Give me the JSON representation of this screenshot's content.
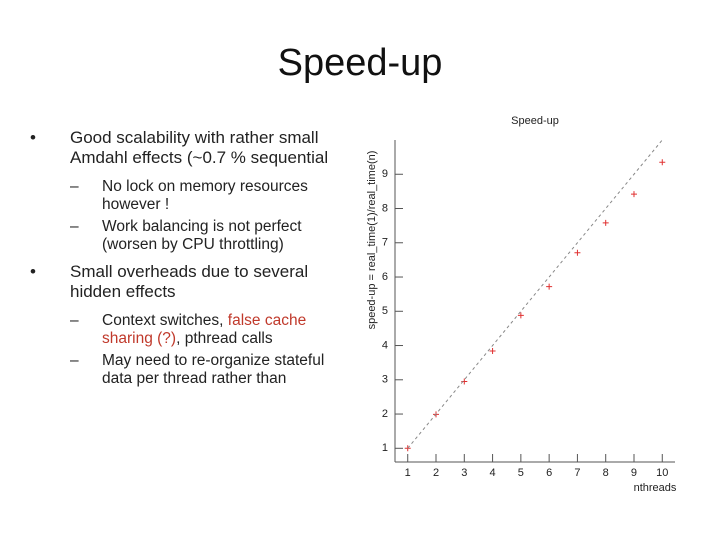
{
  "slide": {
    "title": "Speed-up",
    "bullets": [
      {
        "parts": [
          "Good scalability with rather small Amdahl effects (~0.7 % sequential"
        ],
        "sub": [
          {
            "parts": [
              "No lock on memory resources however !"
            ]
          },
          {
            "parts": [
              "Work balancing is not perfect (worsen by CPU throttling)"
            ]
          }
        ]
      },
      {
        "parts": [
          "Small overheads due to several hidden effects"
        ],
        "sub": [
          {
            "parts": [
              "Context switches, ",
              "false cache sharing (?)",
              ", pthread calls"
            ],
            "highlight": 1,
            "highlight_color": "#c0392b"
          },
          {
            "parts": [
              "May need to re-organize stateful data per thread rather than"
            ]
          }
        ]
      }
    ]
  },
  "chart_data": {
    "type": "scatter",
    "title": "Speed-up",
    "xlabel": "nthreads",
    "ylabel": "speed-up = real_time(1)/real_time(n)",
    "x": [
      1,
      2,
      3,
      4,
      5,
      6,
      7,
      8,
      9,
      10
    ],
    "series": [
      {
        "color": "#e03030",
        "values": [
          1,
          1.99,
          2.95,
          3.84,
          4.88,
          5.72,
          6.71,
          7.58,
          8.42,
          9.35
        ]
      },
      {
        "color": "#888888",
        "style": "dashed",
        "values": [
          1,
          2,
          3,
          4,
          5,
          6,
          7,
          8,
          9,
          10
        ]
      }
    ],
    "xlim": [
      0.55,
      10.45
    ],
    "ylim": [
      0.6,
      10
    ],
    "xticks": [
      1,
      2,
      3,
      4,
      5,
      6,
      7,
      8,
      9,
      10
    ],
    "yticks": [
      1,
      2,
      3,
      4,
      5,
      6,
      7,
      8,
      9
    ]
  }
}
